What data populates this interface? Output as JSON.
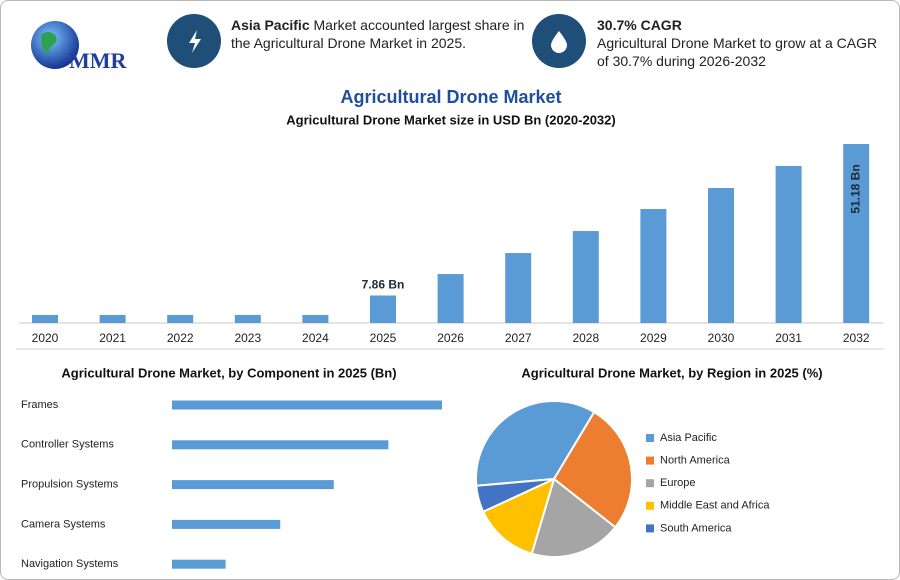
{
  "header": {
    "logo": "MMR",
    "highlights": [
      {
        "bold": "Asia Pacific",
        "text": "Market accounted largest share in the Agricultural Drone Market in 2025."
      },
      {
        "bold": "30.7% CAGR",
        "text": "Agricultural Drone Market to grow at a CAGR of 30.7% during 2026-2032"
      }
    ]
  },
  "title": "Agricultural Drone Market",
  "chart_data": [
    {
      "type": "bar",
      "title": "Agricultural Drone Market size in USD Bn (2020-2032)",
      "categories": [
        "2020",
        "2021",
        "2022",
        "2023",
        "2024",
        "2025",
        "2026",
        "2027",
        "2028",
        "2029",
        "2030",
        "2031",
        "2032"
      ],
      "values": [
        2.3,
        2.3,
        2.3,
        2.3,
        2.3,
        7.86,
        14.0,
        20.0,
        26.3,
        32.6,
        38.6,
        44.9,
        51.18
      ],
      "value_labels": [
        null,
        null,
        null,
        null,
        null,
        "7.86 Bn",
        null,
        null,
        null,
        null,
        null,
        null,
        "51.18 Bn"
      ],
      "color": "#5b9bd5"
    },
    {
      "type": "barh",
      "title": "Agricultural Drone Market, by Component in 2025 (Bn)",
      "categories": [
        "Frames",
        "Controller Systems",
        "Propulsion Systems",
        "Camera Systems",
        "Navigation Systems"
      ],
      "values": [
        2.62,
        2.1,
        1.57,
        1.05,
        0.52
      ],
      "color": "#5b9bd5"
    },
    {
      "type": "pie",
      "title": "Agricultural Drone Market, by Region in 2025 (%)",
      "categories": [
        "Asia Pacific",
        "North America",
        "Europe",
        "Middle East and Africa",
        "South America"
      ],
      "values": [
        35,
        27,
        19,
        13.5,
        5.5
      ],
      "colors": [
        "#5b9bd5",
        "#ed7d31",
        "#a5a5a5",
        "#ffc000",
        "#4472c4"
      ]
    }
  ]
}
